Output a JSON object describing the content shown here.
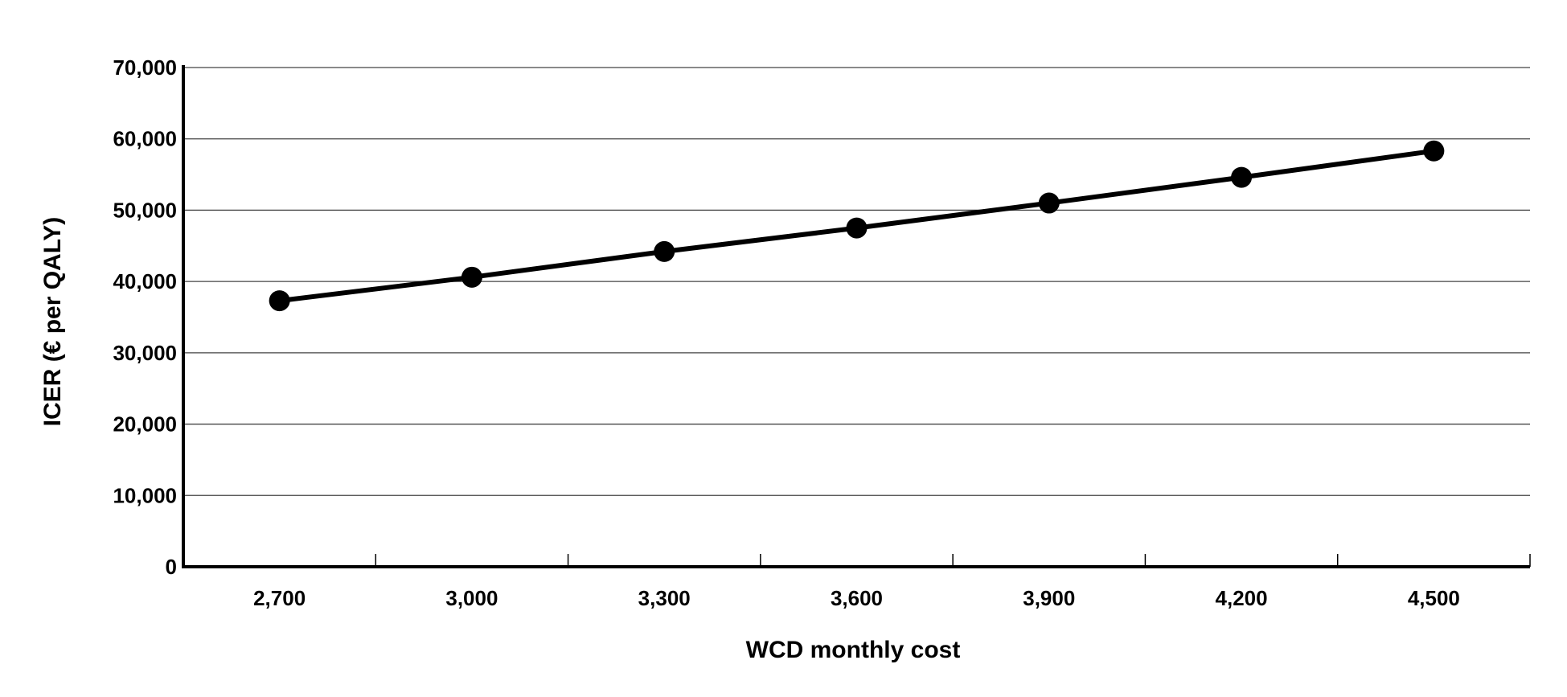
{
  "chart_data": {
    "type": "line",
    "title": "",
    "xlabel": "WCD monthly cost",
    "ylabel": "ICER (€ per QALY)",
    "categories": [
      "2,700",
      "3,000",
      "3,300",
      "3,600",
      "3,900",
      "4,200",
      "4,500"
    ],
    "y_ticks": [
      "0",
      "10,000",
      "20,000",
      "30,000",
      "40,000",
      "50,000",
      "60,000",
      "70,000"
    ],
    "ylim": [
      0,
      70000
    ],
    "grid": true,
    "legend": "none",
    "series": [
      {
        "values": [
          37300,
          40600,
          44200,
          47500,
          51000,
          54600,
          58300
        ]
      }
    ],
    "colors": {
      "line": "#000000",
      "marker": "#000000",
      "grid": "#444444",
      "axis": "#000000"
    }
  }
}
